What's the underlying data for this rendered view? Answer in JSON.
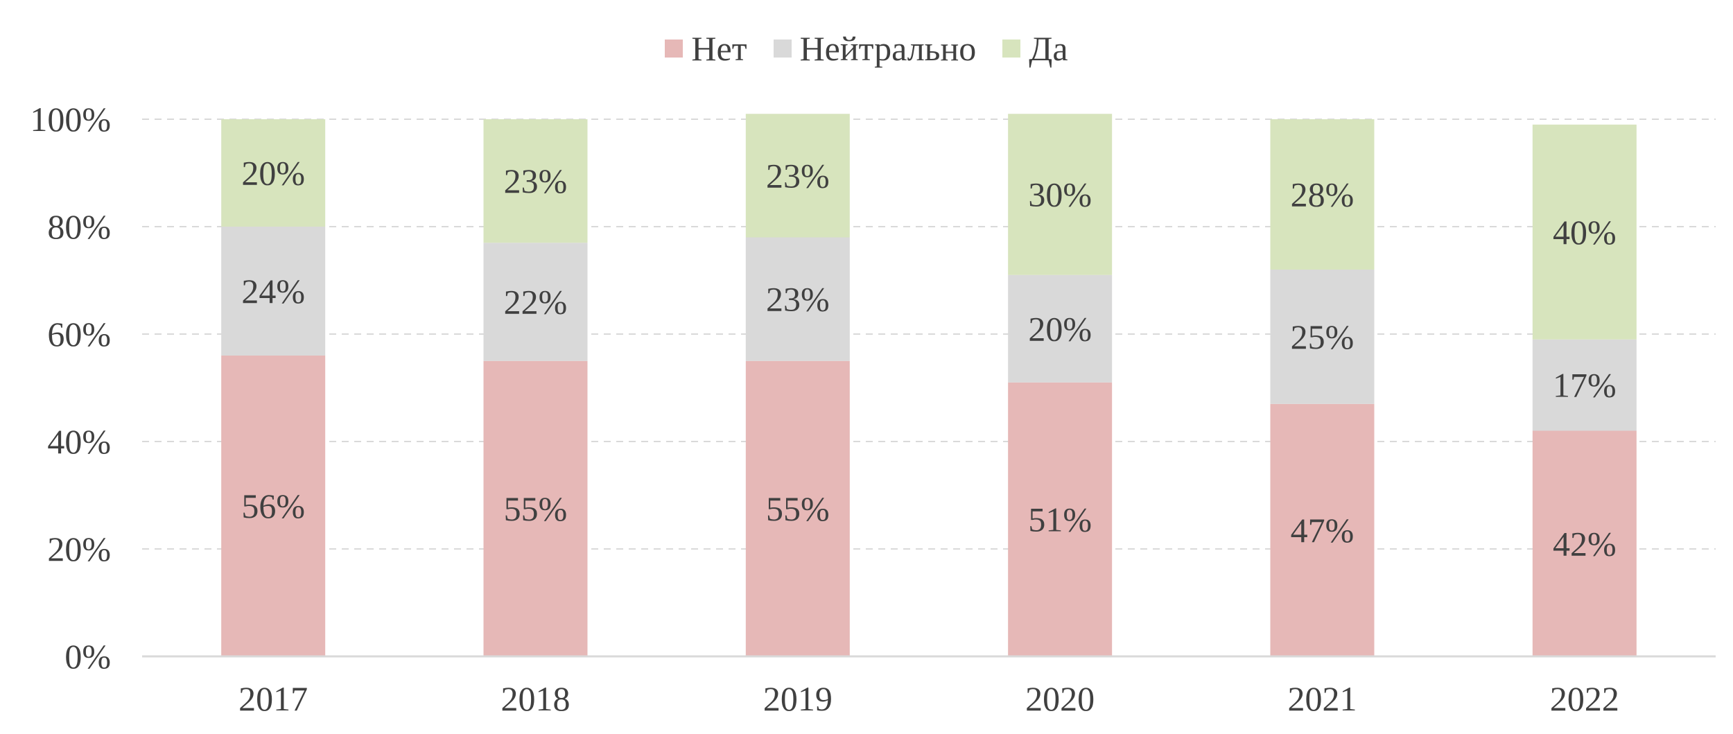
{
  "chart_data": {
    "type": "bar",
    "stacked": true,
    "categories": [
      "2017",
      "2018",
      "2019",
      "2020",
      "2021",
      "2022"
    ],
    "series": [
      {
        "name": "Нет",
        "color": "#e6b8b7",
        "values": [
          56,
          55,
          55,
          51,
          47,
          42
        ],
        "labels": [
          "56%",
          "55%",
          "55%",
          "51%",
          "47%",
          "42%"
        ]
      },
      {
        "name": "Нейтрально",
        "color": "#d9d9d9",
        "values": [
          24,
          22,
          23,
          20,
          25,
          17
        ],
        "labels": [
          "24%",
          "22%",
          "23%",
          "20%",
          "25%",
          "17%"
        ]
      },
      {
        "name": "Да",
        "color": "#d7e4bd",
        "values": [
          20,
          23,
          23,
          30,
          28,
          40
        ],
        "labels": [
          "20%",
          "23%",
          "23%",
          "30%",
          "28%",
          "40%"
        ]
      }
    ],
    "y_ticks": [
      "0%",
      "20%",
      "40%",
      "60%",
      "80%",
      "100%"
    ],
    "ylim": [
      0,
      100
    ],
    "grid": true,
    "legend_position": "top-center",
    "colors": {
      "text": "#404040",
      "grid": "#d9d9d9",
      "axis": "#d9d9d9"
    }
  }
}
